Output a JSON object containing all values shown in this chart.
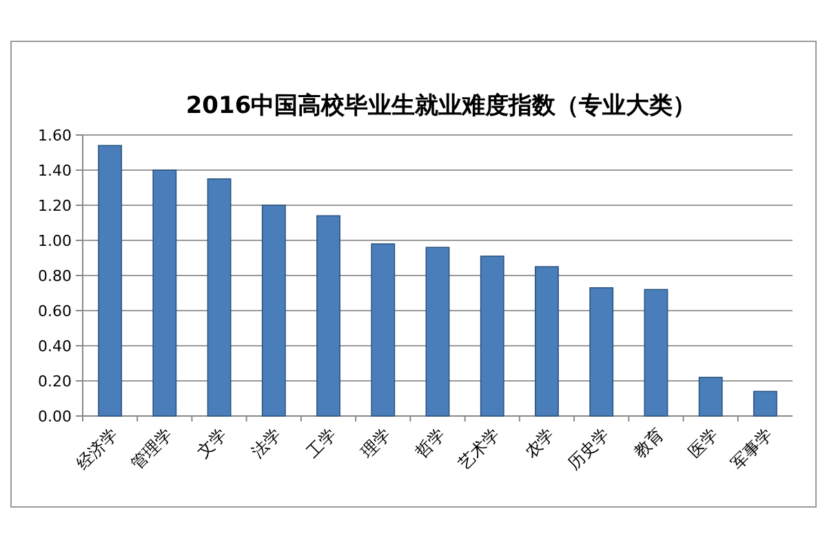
{
  "chart_data": {
    "type": "bar",
    "title": "2016中国高校毕业生就业难度指数（专业大类）",
    "categories": [
      "经济学",
      "管理学",
      "文学",
      "法学",
      "工学",
      "理学",
      "哲学",
      "艺术学",
      "农学",
      "历史学",
      "教育",
      "医学",
      "军事学"
    ],
    "values": [
      1.54,
      1.4,
      1.35,
      1.2,
      1.14,
      0.98,
      0.96,
      0.91,
      0.85,
      0.73,
      0.72,
      0.22,
      0.14
    ],
    "color": "#4a7ebb",
    "ylim": [
      0,
      1.6
    ],
    "yticks": [
      {
        "value": 0,
        "label": "0.00"
      },
      {
        "value": 0.2,
        "label": "0.20"
      },
      {
        "value": 0.4,
        "label": "0.40"
      },
      {
        "value": 0.6,
        "label": "0.60"
      },
      {
        "value": 0.8,
        "label": "0.80"
      },
      {
        "value": 1.0,
        "label": "1.00"
      },
      {
        "value": 1.2,
        "label": "1.20"
      },
      {
        "value": 1.4,
        "label": "1.40"
      },
      {
        "value": 1.6,
        "label": "1.60"
      }
    ],
    "grid": "y"
  }
}
